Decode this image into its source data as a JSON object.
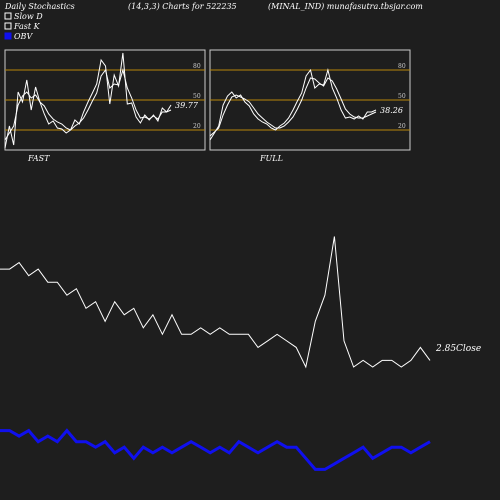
{
  "header": {
    "left": "Daily Stochastics",
    "center": "(14,3,3) Charts for 522235",
    "right": "(MINAL_IND) munafasutra.tbsjar.com"
  },
  "legend": [
    {
      "label": "Slow  D",
      "color": "#ffffff",
      "swatch": "outline"
    },
    {
      "label": "Fast K",
      "color": "#ffffff",
      "swatch": "outline"
    },
    {
      "label": "OBV",
      "color": "#1010ee",
      "swatch": "filled"
    }
  ],
  "colors": {
    "background": "#1e1e1e",
    "panel_border": "#cccccc",
    "level_line": "#b8860b",
    "price": "#ffffff",
    "obv": "#1010ee"
  },
  "chart_data": [
    {
      "type": "line",
      "panel": "FAST",
      "ylim": [
        0,
        100
      ],
      "y_ticks": [
        20,
        50,
        80
      ],
      "levels": [
        20,
        50,
        80
      ],
      "last_value_label": "39.77",
      "series": [
        {
          "name": "Fast K",
          "values": [
            2,
            24,
            5,
            58,
            48,
            70,
            40,
            63,
            48,
            36,
            26,
            29,
            22,
            21,
            17,
            20,
            30,
            26,
            38,
            48,
            57,
            66,
            90,
            84,
            46,
            75,
            64,
            97,
            46,
            47,
            33,
            27,
            35,
            30,
            35,
            29,
            42,
            38,
            45
          ]
        },
        {
          "name": "Slow  D",
          "values": [
            10,
            17,
            24,
            45,
            54,
            58,
            52,
            55,
            48,
            44,
            36,
            31,
            28,
            26,
            22,
            20,
            24,
            27,
            32,
            40,
            49,
            57,
            74,
            80,
            62,
            66,
            65,
            80,
            62,
            52,
            40,
            32,
            33,
            31,
            34,
            31,
            38,
            38,
            40
          ]
        }
      ]
    },
    {
      "type": "line",
      "panel": "FULL",
      "ylim": [
        0,
        100
      ],
      "y_ticks": [
        20,
        50,
        80
      ],
      "levels": [
        20,
        50,
        80
      ],
      "last_value_label": "38.26",
      "series": [
        {
          "name": "Fast K",
          "values": [
            10,
            17,
            24,
            45,
            54,
            58,
            52,
            55,
            48,
            44,
            36,
            31,
            28,
            26,
            22,
            20,
            24,
            27,
            32,
            40,
            49,
            57,
            74,
            80,
            62,
            66,
            65,
            80,
            62,
            52,
            40,
            32,
            33,
            31,
            34,
            31,
            38,
            38,
            40
          ]
        },
        {
          "name": "Slow  D",
          "values": [
            14,
            18,
            22,
            35,
            45,
            53,
            55,
            53,
            51,
            48,
            42,
            36,
            32,
            28,
            25,
            22,
            22,
            24,
            28,
            33,
            41,
            50,
            62,
            72,
            71,
            67,
            64,
            72,
            69,
            61,
            51,
            41,
            36,
            33,
            32,
            32,
            34,
            36,
            38
          ]
        }
      ]
    },
    {
      "type": "line",
      "panel": "price_obv",
      "last_value_label": "2.85",
      "close_label": "Close",
      "series": [
        {
          "name": "Close",
          "values": [
            3.55,
            3.55,
            3.6,
            3.5,
            3.55,
            3.45,
            3.45,
            3.35,
            3.4,
            3.25,
            3.3,
            3.15,
            3.3,
            3.2,
            3.25,
            3.1,
            3.2,
            3.05,
            3.2,
            3.05,
            3.05,
            3.1,
            3.05,
            3.1,
            3.05,
            3.05,
            3.05,
            2.95,
            3.0,
            3.05,
            3.0,
            2.95,
            2.8,
            3.15,
            3.35,
            3.8,
            3.0,
            2.8,
            2.85,
            2.8,
            2.85,
            2.85,
            2.8,
            2.85,
            2.95,
            2.85
          ]
        },
        {
          "name": "OBV",
          "values": [
            7.5,
            7.5,
            7.4,
            7.5,
            7.3,
            7.4,
            7.3,
            7.5,
            7.3,
            7.3,
            7.2,
            7.3,
            7.1,
            7.2,
            7.0,
            7.2,
            7.1,
            7.2,
            7.1,
            7.2,
            7.3,
            7.2,
            7.1,
            7.2,
            7.1,
            7.3,
            7.2,
            7.1,
            7.2,
            7.3,
            7.2,
            7.2,
            7.0,
            6.8,
            6.8,
            6.9,
            7.0,
            7.1,
            7.2,
            7.0,
            7.1,
            7.2,
            7.2,
            7.1,
            7.2,
            7.3
          ]
        }
      ]
    }
  ]
}
